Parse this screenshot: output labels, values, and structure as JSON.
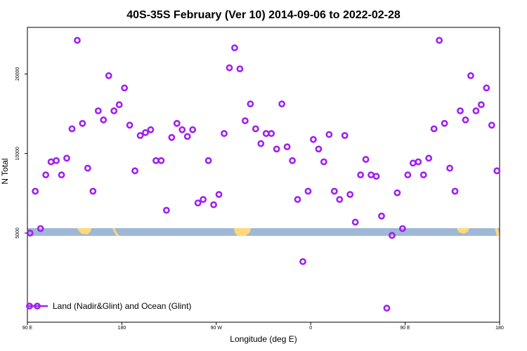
{
  "chart_data": {
    "type": "scatter",
    "title": "40S-35S February (Ver 10)   2014-09-06 to 2022-02-28",
    "xlabel": "Longitude (deg E)",
    "ylabel": "N Total",
    "x_ticks": [
      {
        "value": 90,
        "label": "90 E"
      },
      {
        "value": 180,
        "label": "180"
      },
      {
        "value": 270,
        "label": "90 W"
      },
      {
        "value": 360,
        "label": "0"
      },
      {
        "value": 450,
        "label": "90 E"
      },
      {
        "value": 540,
        "label": "180"
      }
    ],
    "y_ticks": [
      {
        "value": 5000,
        "label": "5000"
      },
      {
        "value": 10000,
        "label": "10000"
      },
      {
        "value": 20000,
        "label": "20000"
      }
    ],
    "xlim": [
      90,
      540
    ],
    "ylim": [
      2300,
      30000
    ],
    "y_scale": "log",
    "grid": false,
    "legend_position": "bottom-left",
    "colors": {
      "series": "#a020f0",
      "ocean_band": "#9fb8d8",
      "land": "#ffd97a"
    },
    "series": [
      {
        "name": "Land (Nadir&Glint) and Ocean (Glint)",
        "x": [
          92.5,
          97.5,
          102.5,
          107.5,
          112.5,
          117.5,
          122.5,
          127.5,
          132.5,
          137.5,
          142.5,
          147.5,
          152.5,
          157.5,
          162.5,
          167.5,
          172.5,
          177.5,
          182.5,
          187.5,
          192.5,
          197.5,
          202.5,
          207.5,
          212.5,
          217.5,
          222.5,
          227.5,
          232.5,
          237.5,
          242.5,
          247.5,
          252.5,
          257.5,
          262.5,
          267.5,
          272.5,
          277.5,
          282.5,
          287.5,
          292.5,
          297.5,
          302.5,
          307.5,
          312.5,
          317.5,
          322.5,
          327.5,
          332.5,
          337.5,
          342.5,
          347.5,
          352.5,
          357.5,
          362.5,
          367.5,
          372.5,
          377.5,
          382.5,
          387.5,
          392.5,
          397.5,
          402.5,
          407.5,
          412.5,
          417.5,
          422.5,
          427.5,
          432.5,
          437.5,
          442.5,
          447.5,
          452.5,
          457.5,
          462.5,
          467.5,
          472.5,
          477.5,
          482.5,
          487.5,
          492.5,
          497.5,
          502.5,
          507.5,
          512.5,
          517.5,
          522.5,
          527.5,
          532.5,
          537.5
        ],
        "y": [
          5000,
          7200,
          5200,
          8300,
          9300,
          9400,
          8300,
          9600,
          12400,
          26800,
          13000,
          8800,
          7200,
          14500,
          13400,
          19700,
          14500,
          15300,
          17700,
          12800,
          8600,
          11700,
          12000,
          12300,
          9400,
          9400,
          6100,
          11500,
          13000,
          12300,
          11600,
          12300,
          6500,
          6700,
          9400,
          6400,
          7000,
          11900,
          21100,
          25100,
          20900,
          13300,
          15400,
          12400,
          10900,
          11900,
          11900,
          10400,
          15400,
          10600,
          9400,
          6700,
          3900,
          7200,
          11300,
          10400,
          9300,
          11800,
          7200,
          6700,
          11700,
          7000,
          5500,
          8300,
          9500,
          8300,
          8200,
          5800,
          2600,
          4900,
          7100,
          5200,
          8300,
          9200,
          9300,
          8300,
          9600,
          12400,
          26800,
          13000,
          8800,
          7200,
          14500,
          13400,
          19700,
          14500,
          15300,
          17700,
          12800,
          8600
        ]
      }
    ]
  }
}
